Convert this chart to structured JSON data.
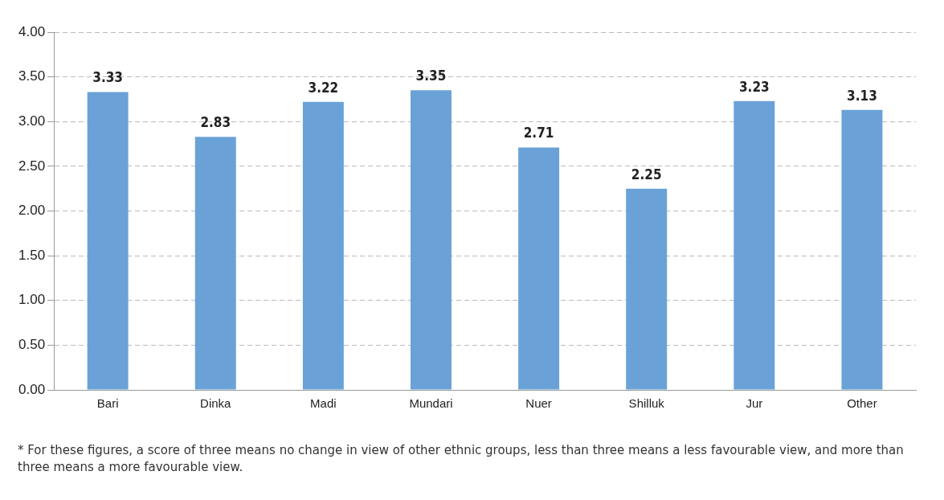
{
  "chart_data": {
    "type": "bar",
    "categories": [
      "Bari",
      "Dinka",
      "Madi",
      "Mundari",
      "Nuer",
      "Shilluk",
      "Jur",
      "Other"
    ],
    "values": [
      3.33,
      2.83,
      3.22,
      3.35,
      2.71,
      2.25,
      3.23,
      3.13
    ],
    "value_labels": [
      "3.33",
      "2.83",
      "3.22",
      "3.35",
      "2.71",
      "2.25",
      "3.23",
      "3.13"
    ],
    "color": "#6aa2d8",
    "ylim": [
      0,
      4
    ],
    "yticks": [
      {
        "value": 0,
        "label": "0.00"
      },
      {
        "value": 0.5,
        "label": "0.50"
      },
      {
        "value": 1,
        "label": "1.00"
      },
      {
        "value": 1.5,
        "label": "1.50"
      },
      {
        "value": 2,
        "label": "2.00"
      },
      {
        "value": 2.5,
        "label": "2.50"
      },
      {
        "value": 3,
        "label": "3.00"
      },
      {
        "value": 3.5,
        "label": "3.50"
      },
      {
        "value": 4,
        "label": "4.00"
      }
    ],
    "grid": "y",
    "annotations": [
      "* For these figures, a score of three means no change in view of other ethnic groups, less than three means a less favourable view, and more than three means a more favourable view."
    ]
  }
}
